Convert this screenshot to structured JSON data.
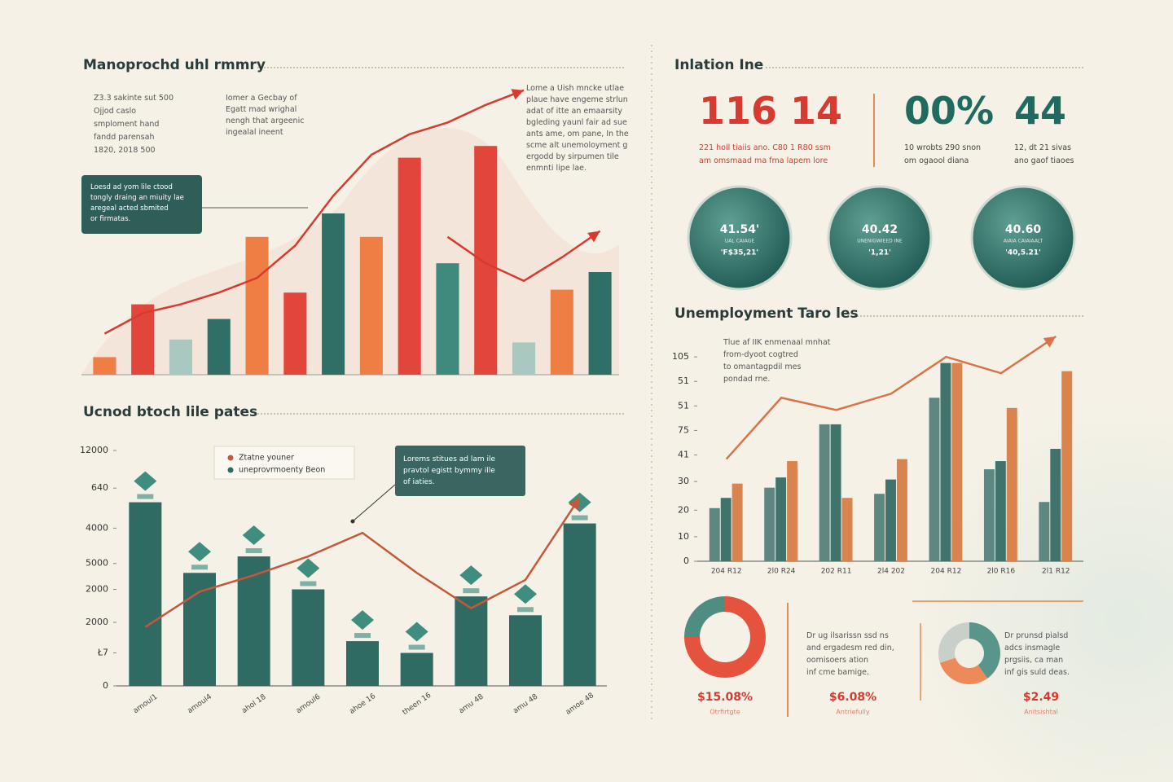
{
  "chart_data": [
    {
      "type": "bar",
      "title": "Manoprochd uhl rmmry",
      "categories": [
        null,
        null,
        null,
        null,
        null,
        null,
        null,
        null,
        null,
        null,
        null,
        null,
        null,
        null
      ],
      "ylim": [
        0,
        100
      ],
      "series": [
        {
          "type": "bar",
          "values": [
            6,
            24,
            12,
            19,
            47,
            28,
            55,
            47,
            74,
            38,
            78,
            11,
            29,
            35
          ],
          "colors": [
            "#ef7e45",
            "#e2463a",
            "#a9c9c0",
            "#2f6f66",
            "#ef7e45",
            "#e2463a",
            "#2f6f66",
            "#ef7e45",
            "#e2463a",
            "#3f8a7c",
            "#e2463a",
            "#a9c9c0",
            "#ef7e45",
            "#2f6f66"
          ]
        },
        {
          "type": "line",
          "color": "#d93a30",
          "values": [
            14,
            21,
            24,
            28,
            33,
            44,
            61,
            75,
            82,
            86,
            92,
            97,
            null,
            null
          ]
        },
        {
          "type": "line",
          "color": "#d93a30",
          "values": [
            null,
            null,
            null,
            null,
            null,
            null,
            null,
            null,
            null,
            47,
            38,
            32,
            40,
            49
          ]
        }
      ]
    },
    {
      "type": "bar",
      "title": "Ucnod btoch lile pates",
      "categories": [
        "amoul1",
        "amoul4",
        "ahol 18",
        "amoul6",
        "ahoe 16",
        "theen 16",
        "amu 48",
        "amu 48",
        "amoe 48"
      ],
      "ylim": [
        0,
        100
      ],
      "yticks": [
        {
          "value": 100,
          "label": "12000"
        },
        {
          "value": 84,
          "label": "640"
        },
        {
          "value": 67,
          "label": "4000"
        },
        {
          "value": 52,
          "label": "5000"
        },
        {
          "value": 41,
          "label": "2000"
        },
        {
          "value": 27,
          "label": "2000"
        },
        {
          "value": 14,
          "label": "Ł7"
        },
        0
      ],
      "legend": "upper left",
      "series": [
        {
          "type": "line",
          "name": "Ztatne youner",
          "color": "#c4583a",
          "values": [
            25,
            40,
            47,
            55,
            65,
            48,
            33,
            45,
            80
          ]
        },
        {
          "type": "bar",
          "name": "uneprovrmoenty Beon",
          "color": "#2f6b62",
          "values": [
            78,
            48,
            55,
            41,
            19,
            14,
            38,
            30,
            69
          ]
        }
      ]
    },
    {
      "type": "bar",
      "title": "Unemployment Taro les",
      "categories": [
        "204 R12",
        "2l0 R24",
        "202 R11",
        "2l4 202",
        "204 R12",
        "2l0 R16",
        "2l1 R12"
      ],
      "ylim": [
        0,
        112
      ],
      "yticks": [
        {
          "value": 100,
          "label": "105"
        },
        {
          "value": 88,
          "label": "51"
        },
        {
          "value": 76,
          "label": "51"
        },
        {
          "value": 64,
          "label": "75"
        },
        {
          "value": 52,
          "label": "41"
        },
        {
          "value": 39,
          "label": "30"
        },
        {
          "value": 25,
          "label": "20"
        },
        {
          "value": 12,
          "label": "10"
        },
        0
      ],
      "series": [
        {
          "type": "bar",
          "color": "#5d8780",
          "values": [
            26,
            36,
            67,
            33,
            80,
            45,
            29
          ]
        },
        {
          "type": "bar",
          "color": "#3f736b",
          "values": [
            31,
            41,
            67,
            40,
            97,
            49,
            55
          ]
        },
        {
          "type": "bar",
          "color": "#d9844f",
          "values": [
            38,
            49,
            31,
            50,
            97,
            75,
            93
          ]
        },
        {
          "type": "line",
          "color": "#d9734a",
          "values": [
            50,
            80,
            74,
            82,
            100,
            92,
            110
          ]
        }
      ]
    },
    {
      "type": "pie",
      "values": [
        75,
        25
      ],
      "colors": [
        "#e5533f",
        "#4f8d83"
      ]
    },
    {
      "type": "pie",
      "values": [
        40,
        30,
        30
      ],
      "colors": [
        "#5a958b",
        "#ec8a5a",
        "#c9cfc9"
      ]
    }
  ],
  "summary_notes": {
    "list": [
      "Z3.3 sakinte sut 500",
      "Ojjod caslo",
      "smploment hand",
      "fandd parensah",
      "1820, 2018 500"
    ],
    "side": [
      "Iomer a Gecbay of",
      "Egatt mad wrighal",
      "nengh that argeenic",
      "ingealal ineent"
    ],
    "box": [
      "Loesd ad yom lile ctood",
      "tongly draing an miuity lae",
      "aregeal acted sbmited",
      "or firmatas."
    ],
    "paragraph": [
      "Lome a Uish mncke utlae",
      "plaue have engeme strlun",
      "adat of itte an emaarsity",
      "bgleding yaunl fair ad sue",
      "ants ame, om pane, In the",
      "scme alt unemoloyment g",
      "ergodd by sirpumen tile",
      "enmnti lipe lae."
    ]
  },
  "rates_note": [
    "Lorems stitues ad lam ile",
    "pravtol egistt bymmy ille",
    "of iaties."
  ],
  "unemployment_note": [
    "Tlue af IIK enmenaal mnhat",
    "from-dyoot cogtred",
    "to omantagpdil mes",
    "pondad rne."
  ],
  "kpi_panel": {
    "title": "Inlation Ine",
    "items": [
      {
        "values": [
          "116",
          "14"
        ],
        "color": "#d93a30",
        "lines": [
          "221 holl tiaiis ano. C80 1 R80 ssm",
          "am omsmaad ma fma lapem lore"
        ]
      },
      {
        "values": [
          "00%"
        ],
        "color": "#1f6b60",
        "lines": [
          "10 wrobts 290 snon",
          "om ogaool diana"
        ]
      },
      {
        "values": [
          "44"
        ],
        "color": "#1f6b60",
        "lines": [
          "12, dt 21 sivas",
          "ano gaof tiaoes"
        ]
      }
    ],
    "circles": [
      {
        "value": "41.54'",
        "sub": "UAL CAIAGE",
        "foot": "'F$35,21'"
      },
      {
        "value": "40.42",
        "sub": "UNENIGWIEED INE",
        "foot": "'1,21'"
      },
      {
        "value": "40.60",
        "sub": "AIAIA CAIAIAALT",
        "foot": "'40,5.21'"
      }
    ]
  },
  "bottom_panel": [
    {
      "value": "$15.08%",
      "caption": "Otrfirtgte"
    },
    {
      "lines": [
        "Dr ug ilsarissn ssd ns",
        "and ergadesm red din,",
        "oomisoers ation",
        "inf cme bamige."
      ],
      "value": "$6.08%",
      "caption": "Antriefully"
    },
    {
      "lines": [
        "Dr prunsd pialsd",
        "adcs insmagle",
        "prgsiis, ca man",
        "inf gis suld deas."
      ],
      "value": "$2.49",
      "caption": "Anitsishtal"
    }
  ]
}
